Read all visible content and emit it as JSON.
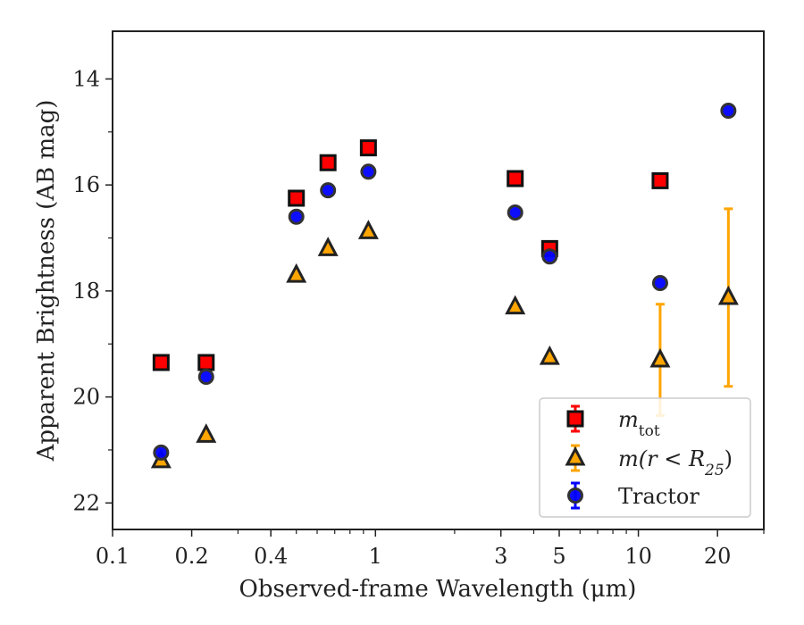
{
  "chart_data": {
    "type": "scatter",
    "xlabel": "Observed-frame Wavelength (μm)",
    "ylabel": "Apparent Brightness (AB mag)",
    "xscale": "log",
    "xlim": [
      0.1,
      30
    ],
    "ylim": [
      22.5,
      13.1
    ],
    "y_inverted": true,
    "x_ticks": [
      {
        "value": 0.1,
        "label": "0.1"
      },
      {
        "value": 0.2,
        "label": "0.2"
      },
      {
        "value": 0.4,
        "label": "0.4"
      },
      {
        "value": 1,
        "label": "1"
      },
      {
        "value": 3,
        "label": "3"
      },
      {
        "value": 5,
        "label": "5"
      },
      {
        "value": 10,
        "label": "10"
      },
      {
        "value": 20,
        "label": "20"
      }
    ],
    "y_ticks": [
      {
        "value": 14,
        "label": "14"
      },
      {
        "value": 16,
        "label": "16"
      },
      {
        "value": 18,
        "label": "18"
      },
      {
        "value": 20,
        "label": "20"
      },
      {
        "value": 22,
        "label": "22"
      }
    ],
    "legend_position": "lower-right",
    "series": [
      {
        "name": "m_tot",
        "legend_main": "m",
        "legend_sub": "tot",
        "marker": "square",
        "color": "#ff0000",
        "error_color": "#ff0000",
        "points": [
          {
            "x": 0.153,
            "y": 19.35
          },
          {
            "x": 0.227,
            "y": 19.35
          },
          {
            "x": 0.5,
            "y": 16.25
          },
          {
            "x": 0.66,
            "y": 15.58
          },
          {
            "x": 0.94,
            "y": 15.3
          },
          {
            "x": 3.4,
            "y": 15.88
          },
          {
            "x": 4.6,
            "y": 17.2
          },
          {
            "x": 12.1,
            "y": 15.92
          }
        ]
      },
      {
        "name": "m(r < R25)",
        "legend_main": "m(r < R",
        "legend_sub": "25",
        "legend_tail": ")",
        "marker": "triangle",
        "color": "#ffa500",
        "error_color": "#ffa500",
        "points": [
          {
            "x": 0.153,
            "y": 21.2
          },
          {
            "x": 0.227,
            "y": 20.72
          },
          {
            "x": 0.5,
            "y": 17.7
          },
          {
            "x": 0.66,
            "y": 17.2
          },
          {
            "x": 0.94,
            "y": 16.88
          },
          {
            "x": 3.4,
            "y": 18.3
          },
          {
            "x": 4.6,
            "y": 19.25
          },
          {
            "x": 12.1,
            "y": 19.3,
            "err_low": 18.25,
            "err_high": 20.35
          },
          {
            "x": 22,
            "y": 18.12,
            "err_low": 16.45,
            "err_high": 19.8
          }
        ]
      },
      {
        "name": "Tractor",
        "legend_main": "Tractor",
        "marker": "circle",
        "color": "#0000ff",
        "error_color": "#0000ff",
        "points": [
          {
            "x": 0.153,
            "y": 21.05
          },
          {
            "x": 0.227,
            "y": 19.62
          },
          {
            "x": 0.5,
            "y": 16.6
          },
          {
            "x": 0.66,
            "y": 16.1
          },
          {
            "x": 0.94,
            "y": 15.75
          },
          {
            "x": 3.4,
            "y": 16.52
          },
          {
            "x": 4.6,
            "y": 17.35
          },
          {
            "x": 12.1,
            "y": 17.85
          },
          {
            "x": 22,
            "y": 14.6
          }
        ]
      }
    ]
  }
}
